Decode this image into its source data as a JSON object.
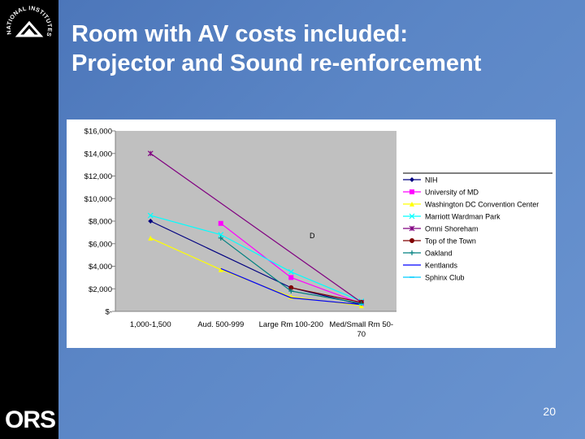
{
  "slide": {
    "title_line1": "Room with AV costs included:",
    "title_line2": "Projector and Sound re-enforcement",
    "page_number": "20",
    "logo_text": "ORS",
    "seal_text": "NATIONAL INSTITUTES OF HEALTH"
  },
  "colors": {
    "background": "#5b86c6",
    "sidebar": "#000000",
    "plot_area": "#c0c0c0"
  },
  "chart_data": {
    "type": "line",
    "categories": [
      "1,000-1,500",
      "Aud. 500-999",
      "Large Rm 100-200",
      "Med/Small Rm 50-70"
    ],
    "category_labels": [
      [
        "1,000-1,500"
      ],
      [
        "Aud. 500-999"
      ],
      [
        "Large Rm 100-200"
      ],
      [
        "Med/Small Rm 50-",
        "70"
      ]
    ],
    "ylim": [
      0,
      16000
    ],
    "yticks": [
      0,
      2000,
      4000,
      6000,
      8000,
      10000,
      12000,
      14000,
      16000
    ],
    "ytick_labels": [
      "$-",
      "$2,000",
      "$4,000",
      "$6,000",
      "$8,000",
      "$10,000",
      "$12,000",
      "$14,000",
      "$16,000"
    ],
    "grid": false,
    "legend_position": "right",
    "annotations": [
      {
        "text": "D",
        "x_index": 2.3,
        "y": 6500
      }
    ],
    "series": [
      {
        "name": "NIH",
        "color": "#000080",
        "marker": "diamond",
        "values": [
          8000,
          null,
          2100,
          600
        ]
      },
      {
        "name": "University of MD",
        "color": "#ff00ff",
        "marker": "square",
        "values": [
          null,
          7800,
          3000,
          700
        ]
      },
      {
        "name": "Washington DC Convention Center",
        "color": "#ffff00",
        "marker": "triangle",
        "values": [
          6500,
          3700,
          1300,
          500
        ]
      },
      {
        "name": "Marriott Wardman Park",
        "color": "#00ffff",
        "marker": "x",
        "values": [
          8500,
          6800,
          3500,
          900
        ]
      },
      {
        "name": "Omni Shoreham",
        "color": "#800080",
        "marker": "star",
        "values": [
          14000,
          null,
          null,
          800
        ]
      },
      {
        "name": "Top of the Town",
        "color": "#800000",
        "marker": "circle",
        "values": [
          null,
          null,
          2100,
          800
        ]
      },
      {
        "name": "Oakland",
        "color": "#008080",
        "marker": "plus",
        "values": [
          null,
          6500,
          1800,
          700
        ]
      },
      {
        "name": "Kentlands",
        "color": "#0000ff",
        "marker": "none",
        "values": [
          null,
          3800,
          1200,
          600
        ]
      },
      {
        "name": "Sphinx Club",
        "color": "#00ccff",
        "marker": "dash",
        "values": [
          null,
          null,
          null,
          600
        ]
      }
    ]
  }
}
